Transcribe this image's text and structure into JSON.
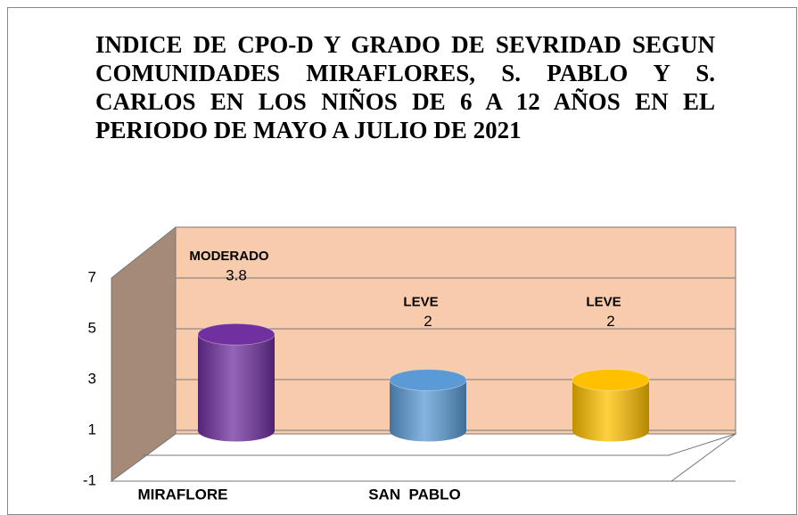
{
  "chart_data": {
    "type": "bar3d",
    "title": "INDICE DE CPO-D Y GRADO DE SEVRIDAD SEGUN COMUNIDADES MIRAFLORES, S. PABLO Y S. CARLOS EN LOS NIÑOS DE 6 A 12 AÑOS EN EL PERIODO DE MAYO A JULIO DE 2021",
    "categories": [
      "MIRAFLORE",
      "SAN  PABLO",
      null
    ],
    "values": [
      3.8,
      2,
      2
    ],
    "severity": [
      "MODERADO",
      "LEVE",
      "LEVE"
    ],
    "colors": [
      "#7030a0",
      "#5b9bd5",
      "#ffc000"
    ],
    "ylim": [
      -1,
      7
    ],
    "yticks": [
      -1,
      1,
      3,
      5,
      7
    ],
    "grid": true
  }
}
